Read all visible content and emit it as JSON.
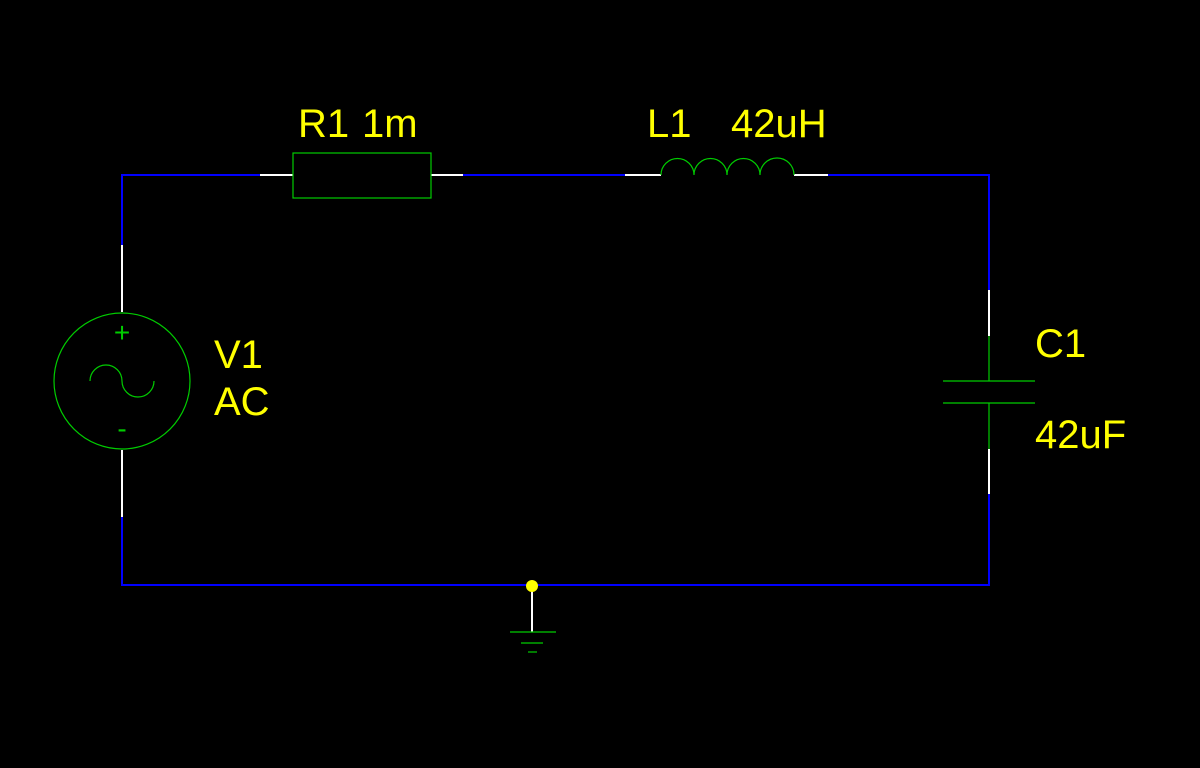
{
  "colors": {
    "background": "#000000",
    "wire": "#0000ff",
    "lead": "#ffffff",
    "component": "#00cc00",
    "label": "#ffff00",
    "junction": "#ffff00"
  },
  "components": {
    "resistor": {
      "ref": "R1",
      "value": "1m"
    },
    "inductor": {
      "ref": "L1",
      "value": "42uH"
    },
    "source": {
      "ref": "V1",
      "value": "AC",
      "plus": "+",
      "minus": "-"
    },
    "capacitor": {
      "ref": "C1",
      "value": "42uF"
    }
  },
  "ground": {
    "icon": "ground-icon"
  }
}
